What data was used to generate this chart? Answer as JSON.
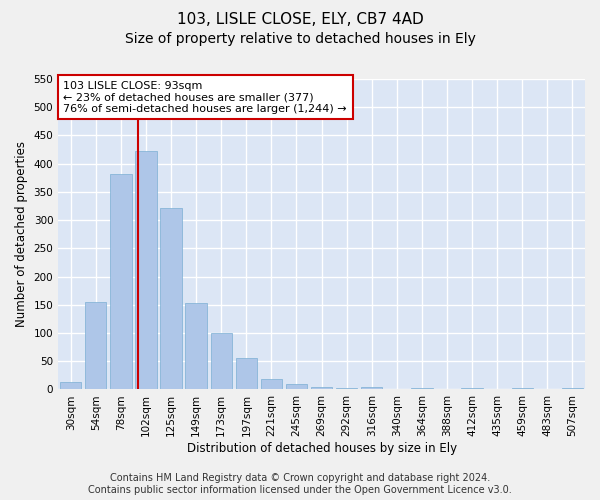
{
  "title": "103, LISLE CLOSE, ELY, CB7 4AD",
  "subtitle": "Size of property relative to detached houses in Ely",
  "xlabel": "Distribution of detached houses by size in Ely",
  "ylabel": "Number of detached properties",
  "categories": [
    "30sqm",
    "54sqm",
    "78sqm",
    "102sqm",
    "125sqm",
    "149sqm",
    "173sqm",
    "197sqm",
    "221sqm",
    "245sqm",
    "269sqm",
    "292sqm",
    "316sqm",
    "340sqm",
    "364sqm",
    "388sqm",
    "412sqm",
    "435sqm",
    "459sqm",
    "483sqm",
    "507sqm"
  ],
  "values": [
    13,
    155,
    382,
    422,
    322,
    153,
    100,
    55,
    19,
    10,
    5,
    3,
    5,
    0,
    3,
    0,
    2,
    0,
    2,
    0,
    3
  ],
  "bar_color": "#aec6e8",
  "bar_edgecolor": "#7bafd4",
  "background_color": "#dce6f5",
  "grid_color": "#ffffff",
  "fig_background": "#f0f0f0",
  "ylim": [
    0,
    550
  ],
  "yticks": [
    0,
    50,
    100,
    150,
    200,
    250,
    300,
    350,
    400,
    450,
    500,
    550
  ],
  "annotation_line1": "103 LISLE CLOSE: 93sqm",
  "annotation_line2": "← 23% of detached houses are smaller (377)",
  "annotation_line3": "76% of semi-detached houses are larger (1,244) →",
  "vline_x_index": 2.67,
  "vline_color": "#cc0000",
  "annotation_box_color": "#ffffff",
  "annotation_box_edgecolor": "#cc0000",
  "footer_line1": "Contains HM Land Registry data © Crown copyright and database right 2024.",
  "footer_line2": "Contains public sector information licensed under the Open Government Licence v3.0.",
  "title_fontsize": 11,
  "subtitle_fontsize": 10,
  "axis_label_fontsize": 8.5,
  "tick_fontsize": 7.5,
  "annotation_fontsize": 8,
  "footer_fontsize": 7
}
